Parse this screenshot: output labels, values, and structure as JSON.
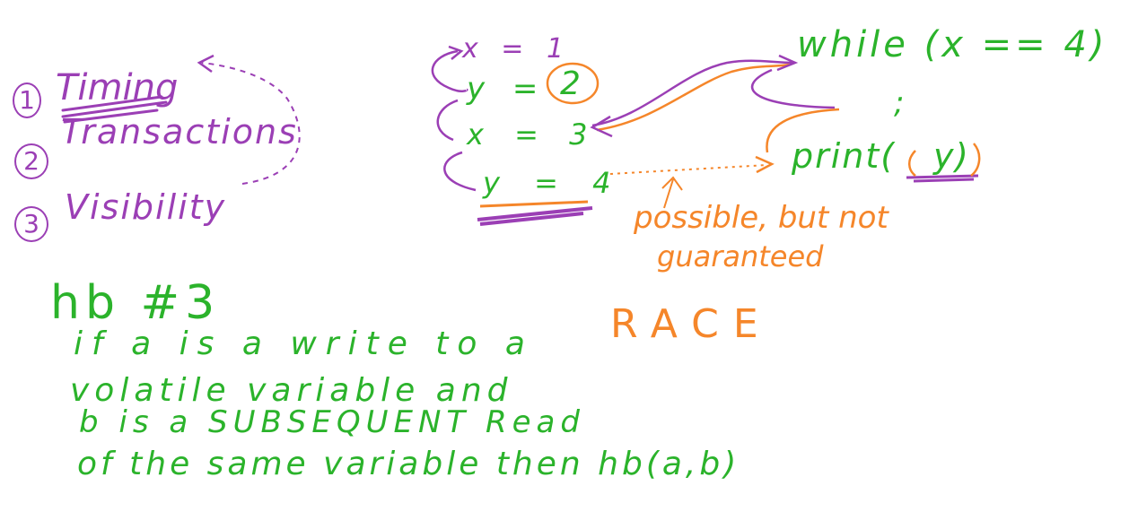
{
  "colors": {
    "purple": "#9b3fb5",
    "green": "#2bb32b",
    "orange": "#f5862a"
  },
  "list": {
    "item1_num": "1",
    "item1_text": "Timing",
    "item2_num": "2",
    "item2_text": "Transactions",
    "item3_num": "3",
    "item3_text": "Visibility"
  },
  "code_left": {
    "line1": "x = 1",
    "line2_pre": "y = ",
    "line2_val": "2",
    "line3": "x = 3",
    "line4": "y = 4"
  },
  "code_right": {
    "line1": "while (x == 4)",
    "line2": ";",
    "line3_pre": "print(",
    "line3_val": "y",
    "line3_post": ")"
  },
  "note": {
    "line1": "possible, but not",
    "line2": "guaranteed",
    "race": "RACE"
  },
  "rule": {
    "heading": "hb #3",
    "line1": "if a is a write to a",
    "line2": "volatile variable and",
    "line3": "b is a SUBSEQUENT Read",
    "line4": "of the same variable then hb(a,b)"
  }
}
